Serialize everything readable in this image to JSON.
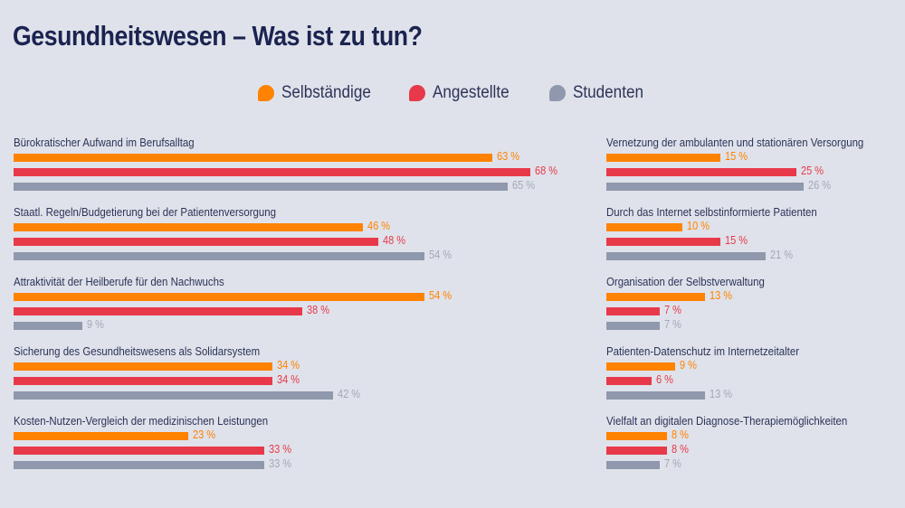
{
  "chart_data": {
    "type": "bar",
    "orientation": "horizontal",
    "title": "Gesundheitswesen – Was ist zu tun?",
    "unit": "%",
    "xlim": [
      0,
      100
    ],
    "grid": false,
    "legend_position": "top-center",
    "series": [
      {
        "name": "Selbständige",
        "color": "#ff8200"
      },
      {
        "name": "Angestellte",
        "color": "#e8394a"
      },
      {
        "name": "Studenten",
        "color": "#8f98ad"
      }
    ],
    "value_colors": [
      "#ff8200",
      "#e8394a",
      "#a2a8b8"
    ],
    "panels": [
      {
        "name": "left",
        "categories": [
          {
            "label": "Bürokratischer Aufwand im Berufsalltag",
            "values": [
              63,
              68,
              65
            ]
          },
          {
            "label": "Staatl. Regeln/Budgetierung bei der Patientenversorgung",
            "values": [
              46,
              48,
              54
            ]
          },
          {
            "label": "Attraktivität der Heilberufe für den Nachwuchs",
            "values": [
              54,
              38,
              9
            ]
          },
          {
            "label": "Sicherung des Gesundheitswesens als Solidarsystem",
            "values": [
              34,
              34,
              42
            ]
          },
          {
            "label": "Kosten-Nutzen-Vergleich der medizinischen Leistungen",
            "values": [
              23,
              33,
              33
            ]
          }
        ]
      },
      {
        "name": "right",
        "categories": [
          {
            "label": "Vernetzung der ambulanten und stationären Versorgung",
            "values": [
              15,
              25,
              26
            ]
          },
          {
            "label": "Durch das Internet selbstinformierte Patienten",
            "values": [
              10,
              15,
              21
            ]
          },
          {
            "label": "Organisation der Selbstverwaltung",
            "values": [
              13,
              7,
              7
            ]
          },
          {
            "label": "Patienten-Datenschutz im Internetzeitalter",
            "values": [
              9,
              6,
              13
            ]
          },
          {
            "label": "Vielfalt an digitalen Diagnose-Therapiemöglichkeiten",
            "values": [
              8,
              8,
              7
            ]
          }
        ]
      }
    ]
  }
}
